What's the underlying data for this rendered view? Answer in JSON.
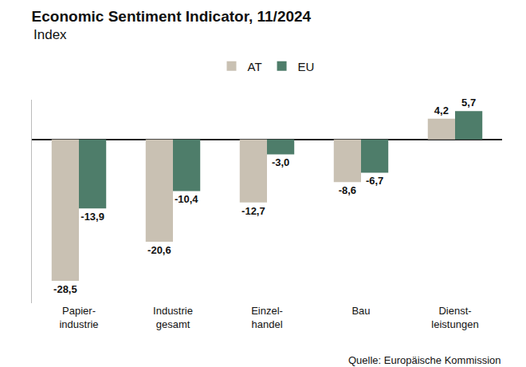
{
  "chart_data": {
    "type": "bar",
    "title": "Economic Sentiment Indicator, 11/2024",
    "subtitle": "Index",
    "source": "Quelle: Europäische Kommission",
    "categories": [
      "Papier-\nindustrie",
      "Industrie\ngesamt",
      "Einzel-\nhandel",
      "Bau",
      "Dienst-\nleistungen"
    ],
    "series": [
      {
        "name": "AT",
        "color": "#c9c1b3",
        "values": [
          -28.5,
          -20.6,
          -12.7,
          -8.6,
          4.2
        ],
        "value_labels": [
          "-28,5",
          "-20,6",
          "-12,7",
          "-8,6",
          "4,2"
        ]
      },
      {
        "name": "EU",
        "color": "#4e7d6a",
        "values": [
          -13.9,
          -10.4,
          -3.0,
          -6.7,
          5.7
        ],
        "value_labels": [
          "-13,9",
          "-10,4",
          "-3,0",
          "-6,7",
          "5,7"
        ]
      }
    ],
    "ylim": [
      -33,
      8
    ],
    "yticks": [
      0
    ],
    "grid": false,
    "legend": "top",
    "data_labels": true,
    "tick_labels": "x"
  }
}
